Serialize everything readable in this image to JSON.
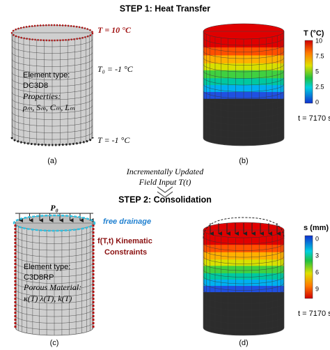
{
  "step1": {
    "title": "STEP 1: Heat Transfer",
    "panel_a": {
      "label": "(a)",
      "top_bc": "T = 10 °C",
      "initial": "T₀ = -1 °C",
      "bottom_bc": "T = -1 °C",
      "element_type": "Element type:",
      "element": "DC3D8",
      "properties": "Properties:",
      "props": "ρₘ, Sₘ, Cₘ, Lₘ"
    },
    "panel_b": {
      "label": "(b)",
      "colorbar_title": "T (°C)",
      "colorbar_ticks": [
        "10",
        "7.5",
        "5",
        "2.5",
        "0"
      ],
      "time": "t = 7170 s"
    }
  },
  "transfer": {
    "line1": "Incrementally Updated",
    "line2": "Field  Input  T(t)"
  },
  "step2": {
    "title": "STEP 2: Consolidation",
    "panel_c": {
      "label": "(c)",
      "load": "P₀",
      "drainage": "free drainage",
      "constraint1": "f(T,t) Kinematic",
      "constraint2": "Constraints",
      "element_type": "Element type:",
      "element": "C3D8RP",
      "material": "Porous Material:",
      "props": "κ(T) λ(T), k(T)"
    },
    "panel_d": {
      "label": "(d)",
      "colorbar_title": "s (mm)",
      "colorbar_ticks": [
        "0",
        "3",
        "6",
        "9"
      ],
      "time": "t = 7170 s"
    }
  }
}
